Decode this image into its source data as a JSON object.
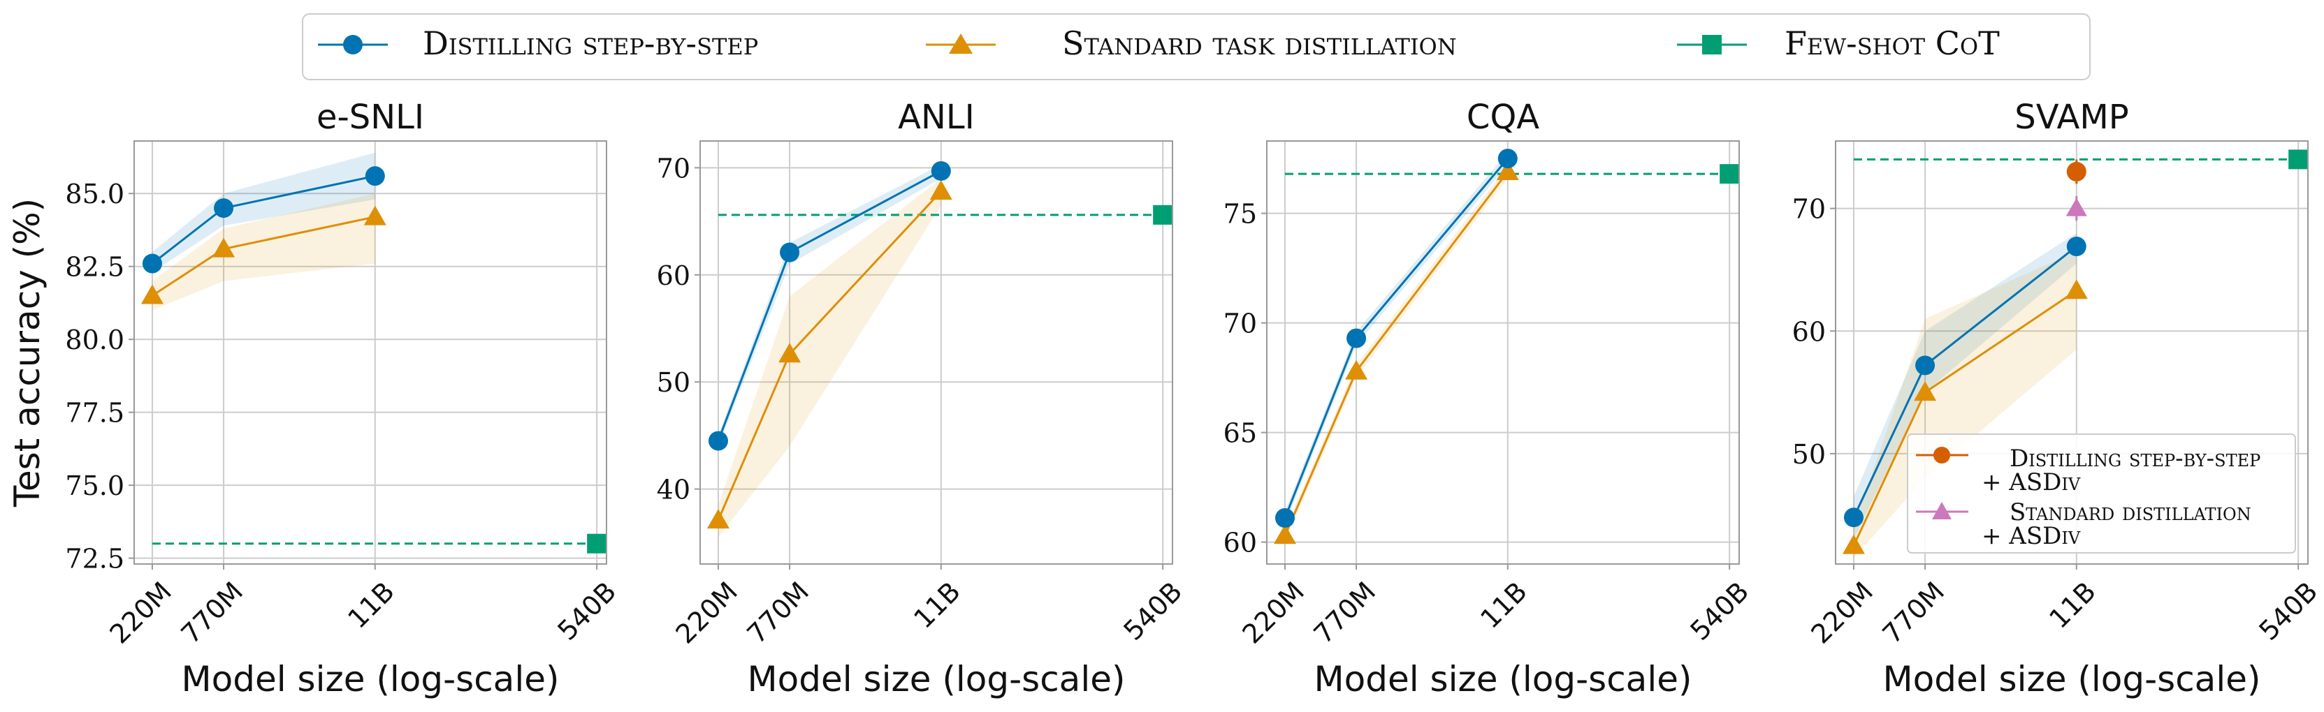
{
  "colors": {
    "distill": "#0173b2",
    "standard": "#de8f05",
    "fewshot": "#029e73",
    "asdiv_distill": "#d55e00",
    "asdiv_standard": "#cc78bc",
    "grid": "#cccccc",
    "spine": "#999999"
  },
  "legend": {
    "distill_label": "Distilling step-by-step",
    "standard_label": "Standard task distillation",
    "fewshot_label": "Few-shot CoT"
  },
  "chart_data": [
    {
      "type": "line",
      "title": "e-SNLI",
      "xlabel": "Model size (log-scale)",
      "ylabel": "Test accuracy (%)",
      "x_scale": "log",
      "x_ticks": [
        "220M",
        "770M",
        "11B",
        "540B"
      ],
      "x_values_params": [
        0.22,
        0.77,
        11,
        540
      ],
      "ylim": [
        72.3,
        86.8
      ],
      "y_ticks": [
        "72.5",
        "75.0",
        "77.5",
        "80.0",
        "82.5",
        "85.0"
      ],
      "series": [
        {
          "name": "Distilling step-by-step",
          "x": [
            0.22,
            0.77,
            11
          ],
          "values": [
            82.6,
            84.5,
            85.6
          ],
          "band_lower": [
            82.3,
            83.9,
            84.8
          ],
          "band_upper": [
            83.0,
            85.0,
            86.4
          ]
        },
        {
          "name": "Standard task distillation",
          "x": [
            0.22,
            0.77,
            11
          ],
          "values": [
            81.5,
            83.1,
            84.2
          ],
          "band_lower": [
            81.0,
            82.0,
            82.6
          ],
          "band_upper": [
            82.0,
            83.8,
            85.0
          ]
        },
        {
          "name": "Few-shot CoT",
          "x": [
            0.22,
            540
          ],
          "values": [
            73.0,
            73.0
          ],
          "marker_x": 540
        }
      ]
    },
    {
      "type": "line",
      "title": "ANLI",
      "xlabel": "Model size (log-scale)",
      "ylabel": "",
      "x_scale": "log",
      "x_ticks": [
        "220M",
        "770M",
        "11B",
        "540B"
      ],
      "x_values_params": [
        0.22,
        0.77,
        11,
        540
      ],
      "ylim": [
        33,
        72.5
      ],
      "y_ticks": [
        "40",
        "50",
        "60",
        "70"
      ],
      "series": [
        {
          "name": "Distilling step-by-step",
          "x": [
            0.22,
            0.77,
            11
          ],
          "values": [
            44.5,
            62.1,
            69.7
          ],
          "band_lower": [
            44.0,
            61.0,
            69.0
          ],
          "band_upper": [
            45.0,
            63.0,
            70.3
          ]
        },
        {
          "name": "Standard task distillation",
          "x": [
            0.22,
            0.77,
            11
          ],
          "values": [
            37.1,
            52.6,
            67.8
          ],
          "band_lower": [
            35.5,
            44.0,
            66.5
          ],
          "band_upper": [
            38.5,
            58.0,
            69.0
          ]
        },
        {
          "name": "Few-shot CoT",
          "x": [
            0.22,
            540
          ],
          "values": [
            65.6,
            65.6
          ],
          "marker_x": 540
        }
      ]
    },
    {
      "type": "line",
      "title": "CQA",
      "xlabel": "Model size (log-scale)",
      "ylabel": "",
      "x_scale": "log",
      "x_ticks": [
        "220M",
        "770M",
        "11B",
        "540B"
      ],
      "x_values_params": [
        0.22,
        0.77,
        11,
        540
      ],
      "ylim": [
        59,
        78.3
      ],
      "y_ticks": [
        "60",
        "65",
        "70",
        "75"
      ],
      "series": [
        {
          "name": "Distilling step-by-step",
          "x": [
            0.22,
            0.77,
            11
          ],
          "values": [
            61.1,
            69.3,
            77.5
          ],
          "band_lower": [
            60.8,
            69.0,
            77.2
          ],
          "band_upper": [
            61.4,
            69.6,
            77.8
          ]
        },
        {
          "name": "Standard task distillation",
          "x": [
            0.22,
            0.77,
            11
          ],
          "values": [
            60.3,
            67.8,
            76.9
          ],
          "band_lower": [
            60.0,
            67.5,
            76.6
          ],
          "band_upper": [
            60.6,
            68.1,
            77.2
          ]
        },
        {
          "name": "Few-shot CoT",
          "x": [
            0.22,
            540
          ],
          "values": [
            76.8,
            76.8
          ],
          "marker_x": 540
        }
      ]
    },
    {
      "type": "line",
      "title": "SVAMP",
      "xlabel": "Model size (log-scale)",
      "ylabel": "",
      "x_scale": "log",
      "x_ticks": [
        "220M",
        "770M",
        "11B",
        "540B"
      ],
      "x_values_params": [
        0.22,
        0.77,
        11,
        540
      ],
      "ylim": [
        41,
        75.5
      ],
      "y_ticks": [
        "50",
        "60",
        "70"
      ],
      "series": [
        {
          "name": "Distilling step-by-step",
          "x": [
            0.22,
            0.77,
            11
          ],
          "values": [
            44.8,
            57.2,
            66.9
          ],
          "band_lower": [
            43.0,
            55.0,
            65.5
          ],
          "band_upper": [
            46.5,
            60.0,
            68.0
          ]
        },
        {
          "name": "Standard task distillation",
          "x": [
            0.22,
            0.77,
            11
          ],
          "values": [
            42.5,
            55.0,
            63.3
          ],
          "band_lower": [
            41.5,
            48.0,
            58.5
          ],
          "band_upper": [
            44.0,
            61.0,
            66.5
          ]
        },
        {
          "name": "Few-shot CoT",
          "x": [
            0.22,
            540
          ],
          "values": [
            74.0,
            74.0
          ],
          "marker_x": 540
        },
        {
          "name": "Distilling step-by-step + ASDiv",
          "x": [
            11
          ],
          "values": [
            73.0
          ],
          "err": [
            1.0
          ]
        },
        {
          "name": "Standard distillation + ASDiv",
          "x": [
            11
          ],
          "values": [
            70.0
          ],
          "err": [
            1.0
          ]
        }
      ],
      "inner_legend": {
        "distill_line1": "Distilling step-by-step",
        "distill_line2": "+ ASDiv",
        "standard_line1": "Standard distillation",
        "standard_line2": "+ ASDiv",
        "placement": "lower-right"
      }
    }
  ]
}
